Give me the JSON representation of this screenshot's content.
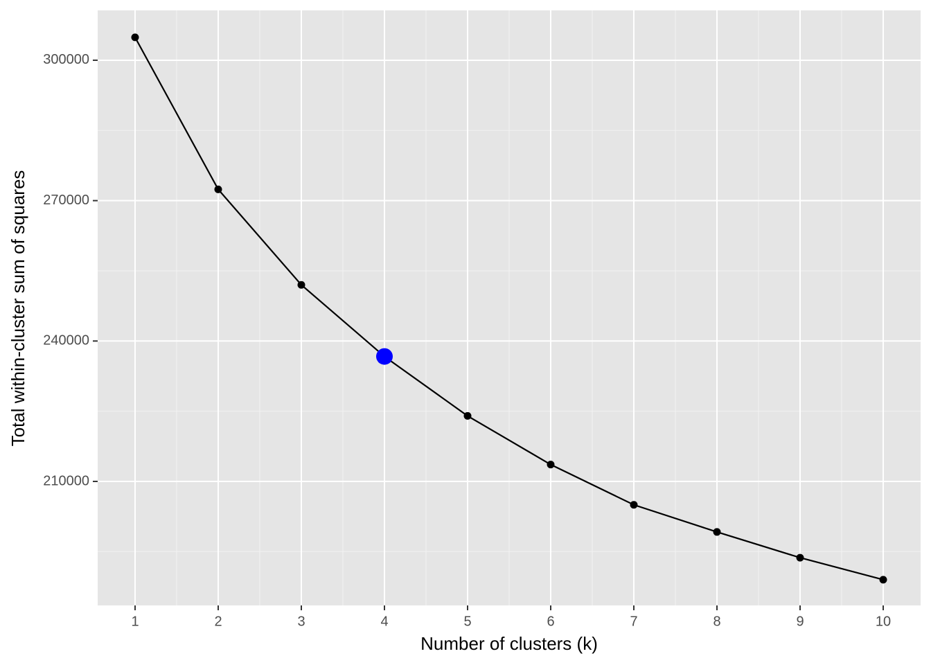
{
  "chart_data": {
    "type": "line",
    "x_label": "Number of clusters (k)",
    "y_label": "Total within-cluster sum of squares",
    "x": [
      1,
      2,
      3,
      4,
      5,
      6,
      7,
      8,
      9,
      10
    ],
    "series": [
      {
        "color": "#000000",
        "values": [
          304900,
          272400,
          252000,
          236700,
          224000,
          213600,
          205000,
          199200,
          193700,
          189000
        ]
      }
    ],
    "highlight_index": 3,
    "highlight_color": "#0000ff",
    "xlim": [
      0.55,
      10.45
    ],
    "xticks": [
      1,
      2,
      3,
      4,
      5,
      6,
      7,
      8,
      9,
      10
    ],
    "ylim": [
      183500,
      310650
    ],
    "yticks": [
      210000,
      240000,
      270000,
      300000
    ],
    "grid": true,
    "background": "#e5e5e5"
  }
}
